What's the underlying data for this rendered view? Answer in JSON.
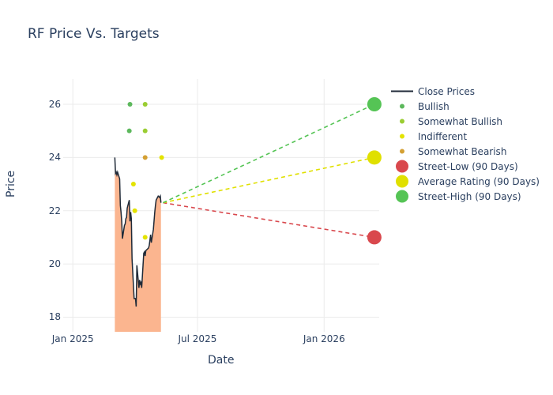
{
  "chart_data": {
    "type": "line",
    "title": "RF Price Vs. Targets",
    "xlabel": "Date",
    "ylabel": "Price",
    "ylim": [
      17.45,
      26.95
    ],
    "xlim": [
      "2024-12-18",
      "2026-03-22"
    ],
    "x_ticks": [
      {
        "value": "2025-01-01",
        "label": "Jan 2025"
      },
      {
        "value": "2025-07-01",
        "label": "Jul 2025"
      },
      {
        "value": "2026-01-01",
        "label": "Jan 2026"
      }
    ],
    "y_ticks": [
      18,
      20,
      22,
      24,
      26
    ],
    "grid": true,
    "legend_position": "right",
    "close_prices": {
      "name": "Close Prices",
      "color": "#1f2a38",
      "fill_color": "#fbb58f",
      "points": [
        [
          "2025-03-03",
          24.0
        ],
        [
          "2025-03-04",
          23.4
        ],
        [
          "2025-03-05",
          23.45
        ],
        [
          "2025-03-06",
          23.35
        ],
        [
          "2025-03-07",
          23.45
        ],
        [
          "2025-03-10",
          23.2
        ],
        [
          "2025-03-11",
          22.2
        ],
        [
          "2025-03-12",
          21.95
        ],
        [
          "2025-03-13",
          21.6
        ],
        [
          "2025-03-14",
          20.95
        ],
        [
          "2025-03-17",
          21.45
        ],
        [
          "2025-03-18",
          21.5
        ],
        [
          "2025-03-19",
          21.7
        ],
        [
          "2025-03-20",
          21.75
        ],
        [
          "2025-03-21",
          22.1
        ],
        [
          "2025-03-24",
          22.4
        ],
        [
          "2025-03-25",
          21.6
        ],
        [
          "2025-03-26",
          21.95
        ],
        [
          "2025-03-27",
          21.7
        ],
        [
          "2025-03-28",
          20.2
        ],
        [
          "2025-03-31",
          18.7
        ],
        [
          "2025-04-02",
          18.7
        ],
        [
          "2025-04-03",
          18.4
        ],
        [
          "2025-04-04",
          19.95
        ],
        [
          "2025-04-07",
          19.1
        ],
        [
          "2025-04-08",
          19.4
        ],
        [
          "2025-04-09",
          19.25
        ],
        [
          "2025-04-10",
          19.3
        ],
        [
          "2025-04-11",
          19.1
        ],
        [
          "2025-04-14",
          20.4
        ],
        [
          "2025-04-15",
          20.45
        ],
        [
          "2025-04-16",
          20.3
        ],
        [
          "2025-04-17",
          20.5
        ],
        [
          "2025-04-21",
          20.6
        ],
        [
          "2025-04-22",
          20.7
        ],
        [
          "2025-04-23",
          20.9
        ],
        [
          "2025-04-24",
          21.1
        ],
        [
          "2025-04-25",
          20.8
        ],
        [
          "2025-04-28",
          21.3
        ],
        [
          "2025-04-30",
          21.95
        ],
        [
          "2025-05-01",
          22.2
        ],
        [
          "2025-05-02",
          22.4
        ],
        [
          "2025-05-05",
          22.55
        ],
        [
          "2025-05-07",
          22.5
        ],
        [
          "2025-05-08",
          22.55
        ],
        [
          "2025-05-09",
          22.3
        ]
      ]
    },
    "analyst_ratings": [
      {
        "rating": "Bullish",
        "color": "#5cb85c",
        "points": [
          [
            "2025-03-24",
            25.0
          ],
          [
            "2025-03-25",
            26.0
          ]
        ]
      },
      {
        "rating": "Somewhat Bullish",
        "color": "#9acd32",
        "points": [
          [
            "2025-04-16",
            26.0
          ],
          [
            "2025-04-16",
            25.0
          ]
        ]
      },
      {
        "rating": "Indifferent",
        "color": "#e3e300",
        "points": [
          [
            "2025-03-30",
            23.0
          ],
          [
            "2025-04-01",
            22.0
          ],
          [
            "2025-04-16",
            21.0
          ],
          [
            "2025-05-10",
            24.0
          ]
        ]
      },
      {
        "rating": "Somewhat Bearish",
        "color": "#d4a033",
        "points": [
          [
            "2025-04-16",
            24.0
          ]
        ]
      }
    ],
    "projections": {
      "start": [
        "2025-05-12",
        22.3
      ],
      "end_date": "2026-03-15",
      "series": [
        {
          "name": "Street-Low (90 Days)",
          "value": 21.0,
          "color": "#d9484d"
        },
        {
          "name": "Average Rating (90 Days)",
          "value": 24.0,
          "color": "#e0e000"
        },
        {
          "name": "Street-High (90 Days)",
          "value": 26.0,
          "color": "#55c455"
        }
      ]
    },
    "legend": [
      {
        "label": "Close Prices",
        "kind": "line",
        "color": "#1f2a38"
      },
      {
        "label": "Bullish",
        "kind": "dot",
        "color": "#5cb85c"
      },
      {
        "label": "Somewhat Bullish",
        "kind": "dot",
        "color": "#9acd32"
      },
      {
        "label": "Indifferent",
        "kind": "dot",
        "color": "#e3e300"
      },
      {
        "label": "Somewhat Bearish",
        "kind": "dot",
        "color": "#d4a033"
      },
      {
        "label": "Street-Low (90 Days)",
        "kind": "bigdot",
        "color": "#d9484d"
      },
      {
        "label": "Average Rating (90 Days)",
        "kind": "bigdot",
        "color": "#e0e000"
      },
      {
        "label": "Street-High (90 Days)",
        "kind": "bigdot",
        "color": "#55c455"
      }
    ]
  }
}
